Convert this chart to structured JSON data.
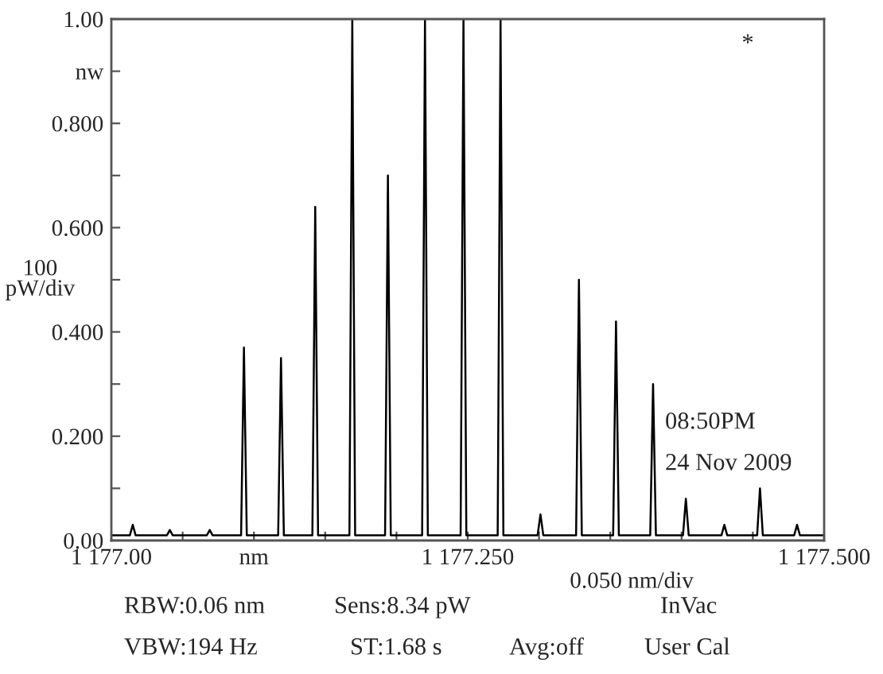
{
  "chart_data": {
    "type": "line",
    "x": [
      1177.0,
      1177.013,
      1177.015,
      1177.017,
      1177.039,
      1177.041,
      1177.043,
      1177.067,
      1177.069,
      1177.071,
      1177.091,
      1177.093,
      1177.095,
      1177.117,
      1177.119,
      1177.121,
      1177.141,
      1177.143,
      1177.145,
      1177.167,
      1177.169,
      1177.171,
      1177.192,
      1177.194,
      1177.196,
      1177.218,
      1177.22,
      1177.222,
      1177.245,
      1177.247,
      1177.249,
      1177.271,
      1177.273,
      1177.275,
      1177.299,
      1177.301,
      1177.303,
      1177.326,
      1177.328,
      1177.33,
      1177.352,
      1177.354,
      1177.356,
      1177.378,
      1177.38,
      1177.382,
      1177.401,
      1177.403,
      1177.405,
      1177.428,
      1177.43,
      1177.432,
      1177.453,
      1177.455,
      1177.457,
      1177.479,
      1177.481,
      1177.483,
      1177.5
    ],
    "series": [
      {
        "color": "#000000",
        "values": [
          0.01,
          0.01,
          0.03,
          0.01,
          0.01,
          0.02,
          0.01,
          0.01,
          0.02,
          0.01,
          0.01,
          0.37,
          0.01,
          0.01,
          0.35,
          0.01,
          0.01,
          0.64,
          0.01,
          0.01,
          1.0,
          0.01,
          0.01,
          0.7,
          0.01,
          0.01,
          1.0,
          0.01,
          0.01,
          1.0,
          0.01,
          0.01,
          1.0,
          0.01,
          0.01,
          0.05,
          0.01,
          0.01,
          0.5,
          0.01,
          0.01,
          0.42,
          0.01,
          0.01,
          0.3,
          0.01,
          0.01,
          0.08,
          0.01,
          0.01,
          0.03,
          0.01,
          0.01,
          0.1,
          0.01,
          0.01,
          0.03,
          0.01,
          0.01
        ]
      }
    ],
    "xlim": [
      1177.0,
      1177.5
    ],
    "xticks": [
      {
        "value": 1177.0,
        "label": "1 177.00"
      },
      {
        "value": 1177.05,
        "label": null
      },
      {
        "value": 1177.1,
        "label": "nm"
      },
      {
        "value": 1177.15,
        "label": null
      },
      {
        "value": 1177.2,
        "label": null
      },
      {
        "value": 1177.25,
        "label": "1 177.250"
      },
      {
        "value": 1177.3,
        "label": null
      },
      {
        "value": 1177.35,
        "label": null
      },
      {
        "value": 1177.4,
        "label": null
      },
      {
        "value": 1177.45,
        "label": null
      },
      {
        "value": 1177.5,
        "label": "1 177.500"
      }
    ],
    "ylim": [
      0,
      1.0
    ],
    "yticks": [
      {
        "value": 0,
        "label": "0.00"
      },
      {
        "value": 0.1,
        "label": null
      },
      {
        "value": 0.2,
        "label": "0.200"
      },
      {
        "value": 0.3,
        "label": null
      },
      {
        "value": 0.4,
        "label": "0.400"
      },
      {
        "value": 0.5,
        "label": null
      },
      {
        "value": 0.6,
        "label": "0.600"
      },
      {
        "value": 0.7,
        "label": null
      },
      {
        "value": 0.8,
        "label": "0.800"
      },
      {
        "value": 0.9,
        "label": "nw"
      },
      {
        "value": 1.0,
        "label": "1.00"
      }
    ],
    "grid": false,
    "legend": false,
    "marker": "none",
    "line_style": "solid",
    "xlabel": "0.050 nm/div",
    "ylabel": "100\npW/div",
    "annotations": [
      "*",
      "08:50PM",
      "24 Nov 2009",
      "RBW:0.06 nm",
      "Sens:8.34 pW",
      "InVac",
      "VBW:194 Hz",
      "ST:1.68 s",
      "Avg:off",
      "User Cal"
    ]
  }
}
